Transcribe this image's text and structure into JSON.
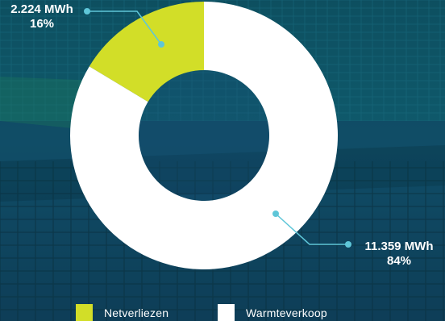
{
  "colors": {
    "net_loss": "#d2de28",
    "heat_sale": "#ffffff",
    "callout": "#5fc6d8"
  },
  "chart_data": {
    "type": "pie",
    "style": "donut",
    "slices": [
      {
        "name": "Netverliezen",
        "value": 2224,
        "value_label": "2.224 MWh",
        "percent_label": "16%",
        "color": "#d2de28"
      },
      {
        "name": "Warmteverkoop",
        "value": 11359,
        "value_label": "11.359 MWh",
        "percent_label": "84%",
        "color": "#ffffff"
      }
    ],
    "unit": "MWh",
    "legend_position": "bottom"
  }
}
